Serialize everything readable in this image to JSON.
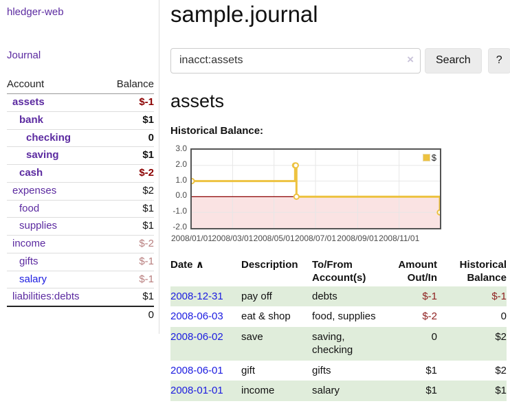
{
  "colors": {
    "link_purple": "#5b2aa0",
    "link_blue": "#1b1be0",
    "negative_strong": "#8b0000",
    "negative_table": "#8e1f1f",
    "negative_muted": "#b87e7e",
    "row_stripe_green": "#e0eddb",
    "series_gold": "#edc240",
    "negative_region_pink": "#fae3e3",
    "zero_line_red": "#8b0000",
    "plot_border_gray": "#545454",
    "grid_gray": "#e7e7e7",
    "button_gray": "#ececec"
  },
  "sidebar": {
    "app_title": "hledger-web",
    "nav_journal_label": "Journal",
    "accounts_table": {
      "headers": [
        "Account",
        "Balance"
      ],
      "rows": [
        {
          "name": "assets",
          "balance": "$-1",
          "indent": 0,
          "bold": true,
          "negative": true,
          "muted": false,
          "unvisited": false
        },
        {
          "name": "bank",
          "balance": "$1",
          "indent": 1,
          "bold": true,
          "negative": false,
          "muted": false,
          "unvisited": false
        },
        {
          "name": "checking",
          "balance": "0",
          "indent": 2,
          "bold": true,
          "negative": false,
          "muted": false,
          "unvisited": false
        },
        {
          "name": "saving",
          "balance": "$1",
          "indent": 2,
          "bold": true,
          "negative": false,
          "muted": false,
          "unvisited": false
        },
        {
          "name": "cash",
          "balance": "$-2",
          "indent": 1,
          "bold": true,
          "negative": true,
          "muted": false,
          "unvisited": false
        },
        {
          "name": "expenses",
          "balance": "$2",
          "indent": 0,
          "bold": false,
          "negative": false,
          "muted": false,
          "unvisited": false
        },
        {
          "name": "food",
          "balance": "$1",
          "indent": 1,
          "bold": false,
          "negative": false,
          "muted": false,
          "unvisited": false
        },
        {
          "name": "supplies",
          "balance": "$1",
          "indent": 1,
          "bold": false,
          "negative": false,
          "muted": false,
          "unvisited": false
        },
        {
          "name": "income",
          "balance": "$-2",
          "indent": 0,
          "bold": false,
          "negative": true,
          "muted": true,
          "unvisited": false
        },
        {
          "name": "gifts",
          "balance": "$-1",
          "indent": 1,
          "bold": false,
          "negative": true,
          "muted": true,
          "unvisited": false
        },
        {
          "name": "salary",
          "balance": "$-1",
          "indent": 1,
          "bold": false,
          "negative": true,
          "muted": true,
          "unvisited": true
        },
        {
          "name": "liabilities:debts",
          "balance": "$1",
          "indent": 0,
          "bold": false,
          "negative": false,
          "muted": false,
          "unvisited": false
        }
      ],
      "total": "0"
    }
  },
  "header": {
    "title": "sample.journal"
  },
  "search": {
    "value": "inacct:assets",
    "clear_icon": "×",
    "search_label": "Search",
    "help_label": "?"
  },
  "main": {
    "account_heading": "assets",
    "chart_label": "Historical Balance:"
  },
  "chart_data": {
    "type": "line",
    "step": true,
    "title": "Historical Balance",
    "legend_label": "$",
    "legend_position": "top-right",
    "grid": true,
    "xrange": [
      "2008-01-01",
      "2008-12-31"
    ],
    "ylim": [
      -2,
      3
    ],
    "yticks": [
      3.0,
      2.0,
      1.0,
      0.0,
      -1.0,
      -2.0
    ],
    "ytick_labels": [
      "3.0",
      "2.0",
      "1.0",
      "0.0",
      "-1.0",
      "-2.0"
    ],
    "xtick_labels": [
      "2008/01/01",
      "2008/03/01",
      "2008/05/01",
      "2008/07/01",
      "2008/09/01",
      "2008/11/01"
    ],
    "series": [
      {
        "name": "$",
        "points": [
          [
            "2008-01-01",
            1
          ],
          [
            "2008-06-01",
            2
          ],
          [
            "2008-06-02",
            2
          ],
          [
            "2008-06-03",
            0
          ],
          [
            "2008-12-31",
            -1
          ]
        ]
      }
    ],
    "negative_region": [
      -2,
      0
    ]
  },
  "register_table": {
    "sort_icon": "∧",
    "headers": [
      "Date",
      "Description",
      "To/From\nAccount(s)",
      "Amount\nOut/In",
      "Historical\nBalance"
    ],
    "rows": [
      {
        "date": "2008-12-31",
        "description": "pay off",
        "accounts": "debts",
        "amount": "$-1",
        "balance": "$-1"
      },
      {
        "date": "2008-06-03",
        "description": "eat & shop",
        "accounts": "food, supplies",
        "amount": "$-2",
        "balance": "0"
      },
      {
        "date": "2008-06-02",
        "description": "save",
        "accounts": "saving, checking",
        "amount": "0",
        "balance": "$2"
      },
      {
        "date": "2008-06-01",
        "description": "gift",
        "accounts": "gifts",
        "amount": "$1",
        "balance": "$2"
      },
      {
        "date": "2008-01-01",
        "description": "income",
        "accounts": "salary",
        "amount": "$1",
        "balance": "$1"
      }
    ]
  }
}
